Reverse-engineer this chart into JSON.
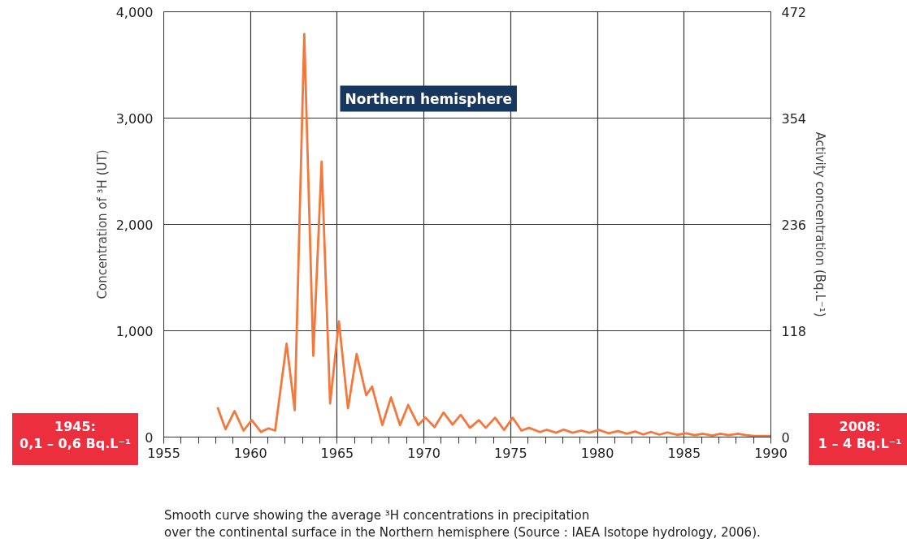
{
  "chart_data": {
    "type": "line",
    "xlabel": null,
    "ylabel": "Concentration of ³H (UT)",
    "y2label": "Activity concentration (Bq.L⁻¹)",
    "annotations": [
      "Northern hemisphere",
      "1945:\n0,1 – 0,6 Bq.L⁻¹",
      "2008:\n1 – 4 Bq.L⁻¹",
      "Smooth curve showing the average ³H concentrations in precipitation\nover the continental surface in the Northern hemisphere (Source : IAEA Isotope hydrology, 2006)."
    ],
    "x": [
      1958.1,
      1958.56,
      1959.08,
      1959.6,
      1960.07,
      1960.6,
      1961.03,
      1961.42,
      1962.08,
      1962.55,
      1963.1,
      1963.62,
      1964.1,
      1964.59,
      1965.1,
      1965.62,
      1966.12,
      1966.67,
      1967.01,
      1967.6,
      1968.1,
      1968.62,
      1969.09,
      1969.67,
      1970.08,
      1970.61,
      1971.13,
      1971.65,
      1972.12,
      1972.65,
      1973.17,
      1973.56,
      1974.1,
      1974.62,
      1975.12,
      1975.62,
      1976.06,
      1976.69,
      1977.08,
      1977.62,
      1978.05,
      1978.56,
      1979.06,
      1979.55,
      1980.08,
      1980.64,
      1981.18,
      1981.7,
      1982.17,
      1982.64,
      1983.1,
      1983.57,
      1984.04,
      1984.59,
      1985.13,
      1985.6,
      1986.07,
      1986.62,
      1987.09,
      1987.56,
      1988.1,
      1988.57,
      1989.04,
      1990
    ],
    "series": [
      {
        "color": "#f4773b",
        "values": [
          280,
          74,
          245,
          61,
          159,
          48,
          82,
          61,
          879,
          253,
          3790,
          764,
          2590,
          316,
          1088,
          270,
          782,
          393,
          475,
          113,
          373,
          113,
          301,
          113,
          184,
          94,
          232,
          117,
          209,
          87,
          159,
          87,
          182,
          67,
          182,
          61,
          87,
          48,
          69,
          41,
          71,
          41,
          61,
          41,
          68,
          36,
          57,
          31,
          52,
          25,
          48,
          23,
          44,
          21,
          36,
          18,
          31,
          15,
          31,
          18,
          31,
          18,
          10,
          10
        ]
      }
    ],
    "xlim": [
      1955,
      1990
    ],
    "xticks": [
      1955,
      {
        "value": 1956,
        "label": null
      },
      {
        "value": 1957,
        "label": null
      },
      {
        "value": 1958,
        "label": null
      },
      {
        "value": 1959,
        "label": null
      },
      1960,
      {
        "value": 1961,
        "label": null
      },
      {
        "value": 1962,
        "label": null
      },
      {
        "value": 1963,
        "label": null
      },
      {
        "value": 1964,
        "label": null
      },
      1965,
      {
        "value": 1966,
        "label": null
      },
      {
        "value": 1967,
        "label": null
      },
      {
        "value": 1968,
        "label": null
      },
      {
        "value": 1969,
        "label": null
      },
      1970,
      {
        "value": 1971,
        "label": null
      },
      {
        "value": 1972,
        "label": null
      },
      {
        "value": 1973,
        "label": null
      },
      {
        "value": 1974,
        "label": null
      },
      1975,
      {
        "value": 1976,
        "label": null
      },
      {
        "value": 1977,
        "label": null
      },
      {
        "value": 1978,
        "label": null
      },
      {
        "value": 1979,
        "label": null
      },
      1980,
      {
        "value": 1981,
        "label": null
      },
      {
        "value": 1982,
        "label": null
      },
      {
        "value": 1983,
        "label": null
      },
      {
        "value": 1984,
        "label": null
      },
      1985,
      {
        "value": 1986,
        "label": null
      },
      {
        "value": 1987,
        "label": null
      },
      {
        "value": 1988,
        "label": null
      },
      {
        "value": 1989,
        "label": null
      },
      1990
    ],
    "ylim": [
      0,
      4000
    ],
    "yticks": [
      0,
      {
        "value": 1000,
        "label": "1,000"
      },
      {
        "value": 2000,
        "label": "2,000"
      },
      {
        "value": 3000,
        "label": "3,000"
      },
      {
        "value": 4000,
        "label": "4,000"
      }
    ],
    "y2lim": [
      0,
      472
    ],
    "y2ticks": [
      0,
      118,
      236,
      354,
      472
    ],
    "grid": true,
    "marker": "none",
    "line_style": "solid"
  }
}
